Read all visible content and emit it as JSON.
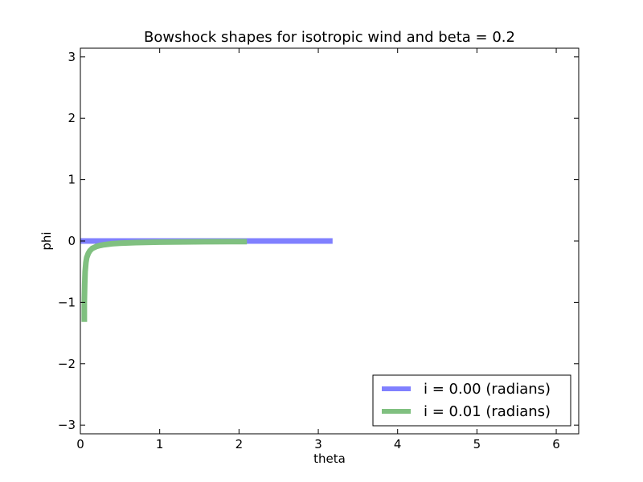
{
  "chart_data": {
    "type": "line",
    "title": "Bowshock shapes for isotropic wind and beta = 0.2",
    "xlabel": "theta",
    "ylabel": "phi",
    "xlim": [
      0,
      6.283185307
    ],
    "ylim": [
      -3.141592654,
      3.141592654
    ],
    "xticks": [
      0,
      1,
      2,
      3,
      4,
      5,
      6
    ],
    "xtick_labels": [
      "0",
      "1",
      "2",
      "3",
      "4",
      "5",
      "6"
    ],
    "yticks": [
      -3,
      -2,
      -1,
      0,
      1,
      2,
      3
    ],
    "ytick_labels": [
      "−3",
      "−2",
      "−1",
      "0",
      "1",
      "2",
      "3"
    ],
    "grid": false,
    "legend_position": "lower-right",
    "series": [
      {
        "name": "i = 0.00 (radians)",
        "color": "#8080ff",
        "x": [
          0,
          0.5,
          1.0,
          1.5,
          2.0,
          2.5,
          3.0,
          3.18
        ],
        "y": [
          0,
          0,
          0,
          0,
          0,
          0,
          0,
          0
        ]
      },
      {
        "name": "i = 0.01 (radians)",
        "color": "#80c080",
        "x": [
          0.05,
          0.05,
          0.055,
          0.06,
          0.07,
          0.08,
          0.1,
          0.12,
          0.15,
          0.2,
          0.25,
          0.3,
          0.4,
          0.5,
          0.7,
          1.0,
          1.3,
          1.6,
          1.9,
          2.1
        ],
        "y": [
          -1.32,
          -1.0,
          -0.7,
          -0.5,
          -0.35,
          -0.27,
          -0.2,
          -0.16,
          -0.12,
          -0.09,
          -0.072,
          -0.06,
          -0.045,
          -0.036,
          -0.026,
          -0.018,
          -0.014,
          -0.012,
          -0.01,
          -0.009
        ]
      }
    ]
  }
}
